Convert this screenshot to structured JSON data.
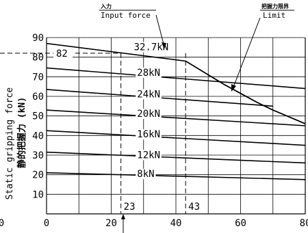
{
  "chart_data": {
    "type": "line",
    "ylabel_en": "Static gripping force",
    "ylabel_jp": "静的把握力 (kN)",
    "xlim": [
      0,
      80
    ],
    "ylim": [
      0,
      90
    ],
    "x_ticks": [
      "0",
      "20",
      "40",
      "60",
      "80"
    ],
    "y_ticks": [
      "10",
      "20",
      "30",
      "40",
      "50",
      "60",
      "70",
      "80",
      "90"
    ],
    "left_tick_label": "0",
    "grid": true,
    "series": [
      {
        "name": "32.7kN",
        "x": [
          0,
          43
        ],
        "y": [
          87,
          78
        ]
      },
      {
        "name": "28kN",
        "x": [
          0,
          80
        ],
        "y": [
          74.5,
          64
        ]
      },
      {
        "name": "24kN",
        "x": [
          0,
          70
        ],
        "y": [
          63.5,
          55
        ]
      },
      {
        "name": "20kN",
        "x": [
          0,
          80
        ],
        "y": [
          53,
          45
        ]
      },
      {
        "name": "16kN",
        "x": [
          0,
          80
        ],
        "y": [
          42.5,
          35
        ]
      },
      {
        "name": "12kN",
        "x": [
          0,
          80
        ],
        "y": [
          31.5,
          26
        ]
      },
      {
        "name": "8kN",
        "x": [
          0,
          80
        ],
        "y": [
          21,
          17.5
        ]
      }
    ],
    "limit_curve": {
      "name_jp": "把握力限界",
      "name_en": "Limit",
      "x": [
        43,
        50,
        55,
        60,
        65,
        70,
        75,
        80
      ],
      "y": [
        78,
        71,
        66,
        61.5,
        57,
        53,
        49.5,
        46
      ]
    },
    "input_force_annotation": {
      "name_jp": "入力",
      "name_en": "Input force"
    },
    "reference_lines": [
      {
        "axis": "x",
        "value": 23,
        "label": "23"
      },
      {
        "axis": "x",
        "value": 43,
        "label": "43"
      },
      {
        "axis": "y",
        "value": 82,
        "label": "82"
      }
    ]
  }
}
